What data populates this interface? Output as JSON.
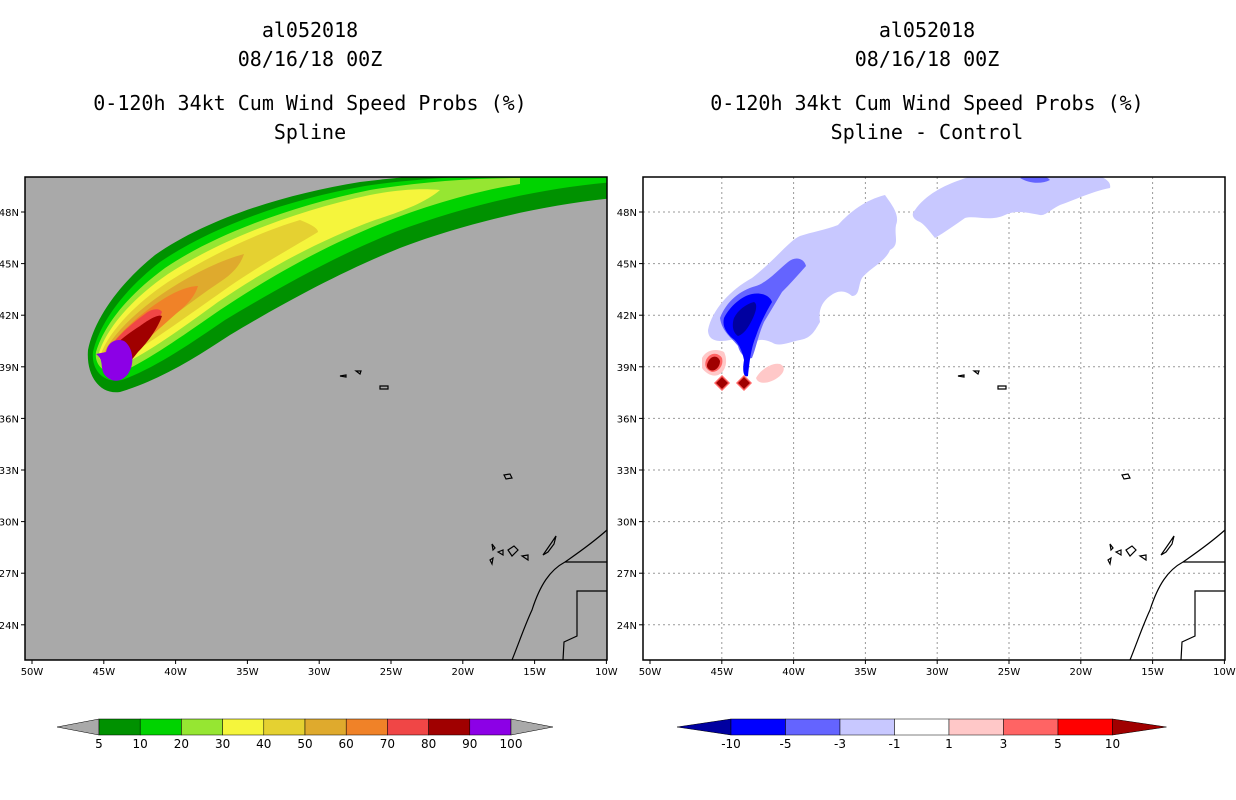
{
  "left_panel": {
    "storm_id": "al052018",
    "datetime": "08/16/18 00Z",
    "product": "0-120h 34kt Cum Wind Speed Probs (%)",
    "subtitle": "Spline",
    "colorbar_labels": [
      "5",
      "10",
      "20",
      "30",
      "40",
      "50",
      "60",
      "70",
      "80",
      "90",
      "100"
    ],
    "colors": [
      "#009100",
      "#00d300",
      "#96e632",
      "#f5f53c",
      "#e5d131",
      "#dfaa2d",
      "#f08228",
      "#f04646",
      "#a00000",
      "#8c00e6"
    ]
  },
  "right_panel": {
    "storm_id": "al052018",
    "datetime": "08/16/18 00Z",
    "product": "0-120h 34kt Cum Wind Speed Probs (%)",
    "subtitle": "Spline - Control",
    "colorbar_labels": [
      "-10",
      "-5",
      "-3",
      "-1",
      "1",
      "3",
      "5",
      "10"
    ],
    "colors": [
      "#0000a0",
      "#0000ff",
      "#6464ff",
      "#c8c8ff",
      "#ffffff",
      "#ffc8c8",
      "#ff6464",
      "#ff0000",
      "#a00000"
    ]
  },
  "map": {
    "lon_labels": [
      "50W",
      "45W",
      "40W",
      "35W",
      "30W",
      "25W",
      "20W",
      "15W",
      "10W"
    ],
    "lat_labels": [
      "48N",
      "45N",
      "42N",
      "39N",
      "36N",
      "33N",
      "30N",
      "27N",
      "24N"
    ],
    "background_color": "#a9a9a9"
  }
}
